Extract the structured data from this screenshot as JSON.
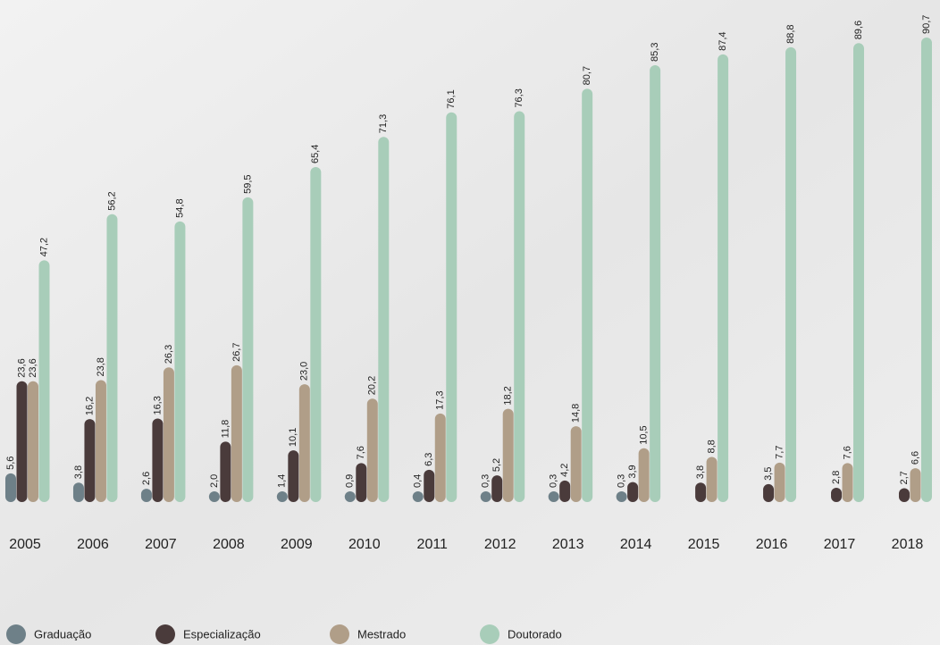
{
  "chart_data": {
    "type": "bar",
    "categories": [
      "2005",
      "2006",
      "2007",
      "2008",
      "2009",
      "2010",
      "2011",
      "2012",
      "2013",
      "2014",
      "2015",
      "2016",
      "2017",
      "2018"
    ],
    "series": [
      {
        "name": "Graduação",
        "color": "#6e8088",
        "values": [
          5.6,
          3.8,
          2.6,
          2.0,
          1.4,
          0.9,
          0.4,
          0.3,
          0.3,
          0.3,
          null,
          null,
          null,
          null
        ],
        "value_labels": [
          "5,6",
          "3,8",
          "2,6",
          "2,0",
          "1,4",
          "0,9",
          "0,4",
          "0,3",
          "0,3",
          "0,3",
          null,
          null,
          null,
          null
        ]
      },
      {
        "name": "Especialização",
        "color": "#4a3b3b",
        "values": [
          23.6,
          16.2,
          16.3,
          11.8,
          10.1,
          7.6,
          6.3,
          5.2,
          4.2,
          3.9,
          3.8,
          3.5,
          2.8,
          2.7
        ],
        "value_labels": [
          "23,6",
          "16,2",
          "16,3",
          "11,8",
          "10,1",
          "7,6",
          "6,3",
          "5,2",
          "4,2",
          "3,9",
          "3,8",
          "3,5",
          "2,8",
          "2,7"
        ]
      },
      {
        "name": "Mestrado",
        "color": "#b09e88",
        "values": [
          23.6,
          23.8,
          26.3,
          26.7,
          23.0,
          20.2,
          17.3,
          18.2,
          14.8,
          10.5,
          8.8,
          7.7,
          7.6,
          6.6
        ],
        "value_labels": [
          "23,6",
          "23,8",
          "26,3",
          "26,7",
          "23,0",
          "20,2",
          "17,3",
          "18,2",
          "14,8",
          "10,5",
          "8,8",
          "7,7",
          "7,6",
          "6,6"
        ]
      },
      {
        "name": "Doutorado",
        "color": "#a8cdb9",
        "values": [
          47.2,
          56.2,
          54.8,
          59.5,
          65.4,
          71.3,
          76.1,
          76.3,
          80.7,
          85.3,
          87.4,
          88.8,
          89.6,
          90.7
        ],
        "value_labels": [
          "47,2",
          "56,2",
          "54,8",
          "59,5",
          "65,4",
          "71,3",
          "76,1",
          "76,3",
          "80,7",
          "85,3",
          "87,4",
          "88,8",
          "89,6",
          "90,7"
        ]
      }
    ]
  }
}
